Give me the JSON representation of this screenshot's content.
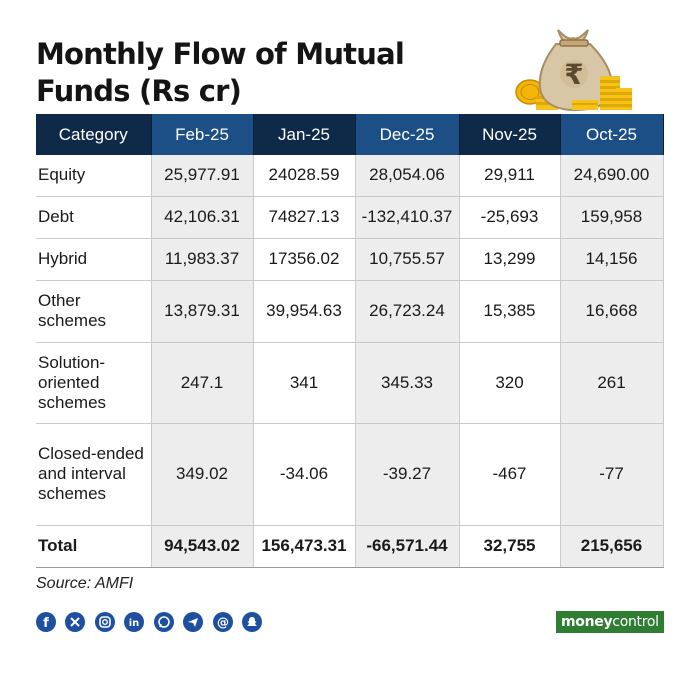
{
  "title_line1": "Monthly Flow of Mutual",
  "title_line2": "Funds (Rs cr)",
  "source": "Source: AMFI",
  "brand": {
    "part1": "money",
    "part2": "control"
  },
  "social_icons": [
    "facebook-icon",
    "x-icon",
    "instagram-icon",
    "linkedin-icon",
    "whatsapp-icon",
    "telegram-icon",
    "threads-icon",
    "snapchat-icon"
  ],
  "colors": {
    "header_navy": "#0f2a48",
    "header_blue": "#1b4f86",
    "shade": "#ededed",
    "brand_green": "#2e7d32"
  },
  "chart_data": {
    "type": "table",
    "title": "Monthly Flow of Mutual Funds (Rs cr)",
    "columns": [
      "Category",
      "Feb-25",
      "Jan-25",
      "Dec-25",
      "Nov-25",
      "Oct-25"
    ],
    "rows": [
      {
        "category": "Equity",
        "values": [
          "25,977.91",
          "24028.59",
          "28,054.06",
          "29,911",
          "24,690.00"
        ]
      },
      {
        "category": "Debt",
        "values": [
          "42,106.31",
          "74827.13",
          "-132,410.37",
          "-25,693",
          "159,958"
        ]
      },
      {
        "category": "Hybrid",
        "values": [
          "11,983.37",
          "17356.02",
          "10,755.57",
          "13,299",
          "14,156"
        ]
      },
      {
        "category": "Other schemes",
        "values": [
          "13,879.31",
          "39,954.63",
          "26,723.24",
          "15,385",
          "16,668"
        ]
      },
      {
        "category": "Solution-oriented schemes",
        "values": [
          "247.1",
          "341",
          "345.33",
          "320",
          "261"
        ]
      },
      {
        "category": "Closed-ended and interval schemes",
        "values": [
          "349.02",
          "-34.06",
          "-39.27",
          "-467",
          "-77"
        ]
      }
    ],
    "total": {
      "category": "Total",
      "values": [
        "94,543.02",
        "156,473.31",
        "-66,571.44",
        "32,755",
        "215,656"
      ]
    }
  }
}
